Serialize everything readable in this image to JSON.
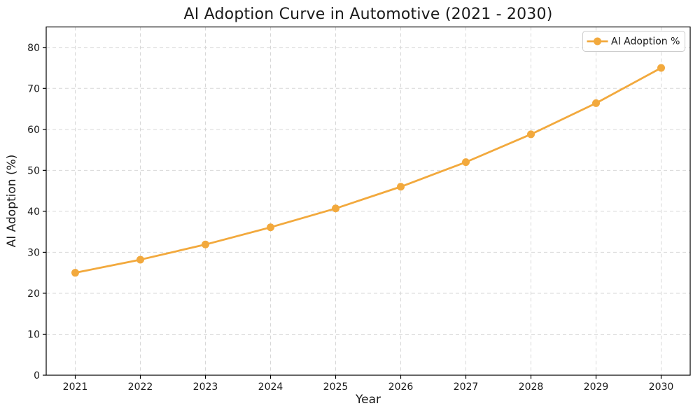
{
  "chart_data": {
    "type": "line",
    "title": "AI Adoption Curve in Automotive (2021 - 2030)",
    "xlabel": "Year",
    "ylabel": "AI Adoption (%)",
    "categories": [
      "2021",
      "2022",
      "2023",
      "2024",
      "2025",
      "2026",
      "2027",
      "2028",
      "2029",
      "2030"
    ],
    "series": [
      {
        "name": "AI Adoption %",
        "values": [
          25.0,
          28.2,
          31.9,
          36.1,
          40.7,
          46.0,
          52.0,
          58.8,
          66.4,
          75.0
        ],
        "color": "#f2a93d",
        "marker": "circle",
        "line_style": "solid"
      }
    ],
    "ylim": [
      0,
      85
    ],
    "yticks": [
      0,
      10,
      20,
      30,
      40,
      50,
      60,
      70,
      80
    ],
    "grid": {
      "visible": true,
      "style": "dashed",
      "color": "#d7d7d7"
    },
    "legend": {
      "position": "upper right",
      "entries": [
        "AI Adoption %"
      ]
    },
    "background_color": "#ffffff",
    "axis_color": "#000000"
  }
}
